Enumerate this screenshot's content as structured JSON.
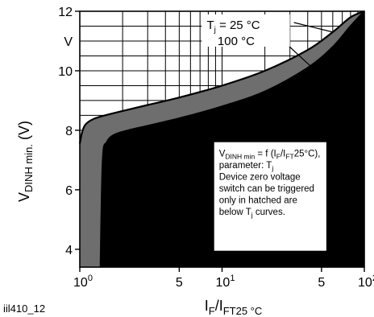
{
  "chart_data": {
    "type": "area",
    "x_scale": "log",
    "xlim": [
      1,
      100
    ],
    "ylim": [
      3.4,
      12
    ],
    "grid": true,
    "y_label_main": "V",
    "y_label_sub": "DINH min.",
    "y_label_unit": " (V)",
    "x_label_main": "I",
    "x_label_sub1": "F",
    "x_label_mid": "/I",
    "x_label_sub2": "FT25 °C",
    "y_ticks": [
      {
        "value": 4,
        "label": "4"
      },
      {
        "value": 6,
        "label": "6"
      },
      {
        "value": 8,
        "label": "8"
      },
      {
        "value": 10,
        "label": "10"
      },
      {
        "value": 12,
        "label": "12"
      }
    ],
    "y_unit_tick": {
      "value": 11,
      "label": "V"
    },
    "x_ticks": [
      {
        "value": 1,
        "base": "10",
        "exp": "0"
      },
      {
        "value": 5,
        "label": "5"
      },
      {
        "value": 10,
        "base": "10",
        "exp": "1"
      },
      {
        "value": 50,
        "label": "5"
      },
      {
        "value": 100,
        "base": "10",
        "exp": "2"
      }
    ],
    "figure_id": "iil410_12",
    "series": [
      {
        "name": "Tj = 25 °C",
        "x": [
          1,
          1.04,
          1.1,
          1.25,
          1.5,
          2,
          3,
          5,
          10,
          20,
          40,
          60,
          80,
          100
        ],
        "y": [
          7.55,
          7.95,
          8.2,
          8.38,
          8.5,
          8.65,
          8.85,
          9.1,
          9.5,
          10.0,
          10.7,
          11.3,
          11.8,
          12.0
        ]
      },
      {
        "name": "100 °C",
        "x": [
          1.4,
          1.45,
          1.55,
          1.75,
          2.2,
          3,
          5,
          10,
          20,
          40,
          60,
          80,
          100
        ],
        "y": [
          3.4,
          7.0,
          7.6,
          7.85,
          8.0,
          8.15,
          8.4,
          8.8,
          9.3,
          10.1,
          10.8,
          11.5,
          12.0
        ]
      }
    ],
    "annotations": {
      "series1_label": {
        "tj": "T",
        "tj_sub": "j",
        "rest": " = 25 °C"
      },
      "series2_label": "100 °C"
    },
    "textbox": {
      "line1_v": "V",
      "line1_sub": "DINH min",
      "line1_eq": " = f (I",
      "line1_sub2": "F",
      "line1_slash": "/I",
      "line1_sub3": "FT",
      "line1_end": "25°C),",
      "line2": "parameter: T",
      "line2_sub": "j",
      "line3": "Device zero voltage",
      "line4": "switch can be triggered",
      "line5": "only in hatched are",
      "line6": "below T",
      "line6_sub": "j",
      "line6_end": " curves."
    }
  }
}
